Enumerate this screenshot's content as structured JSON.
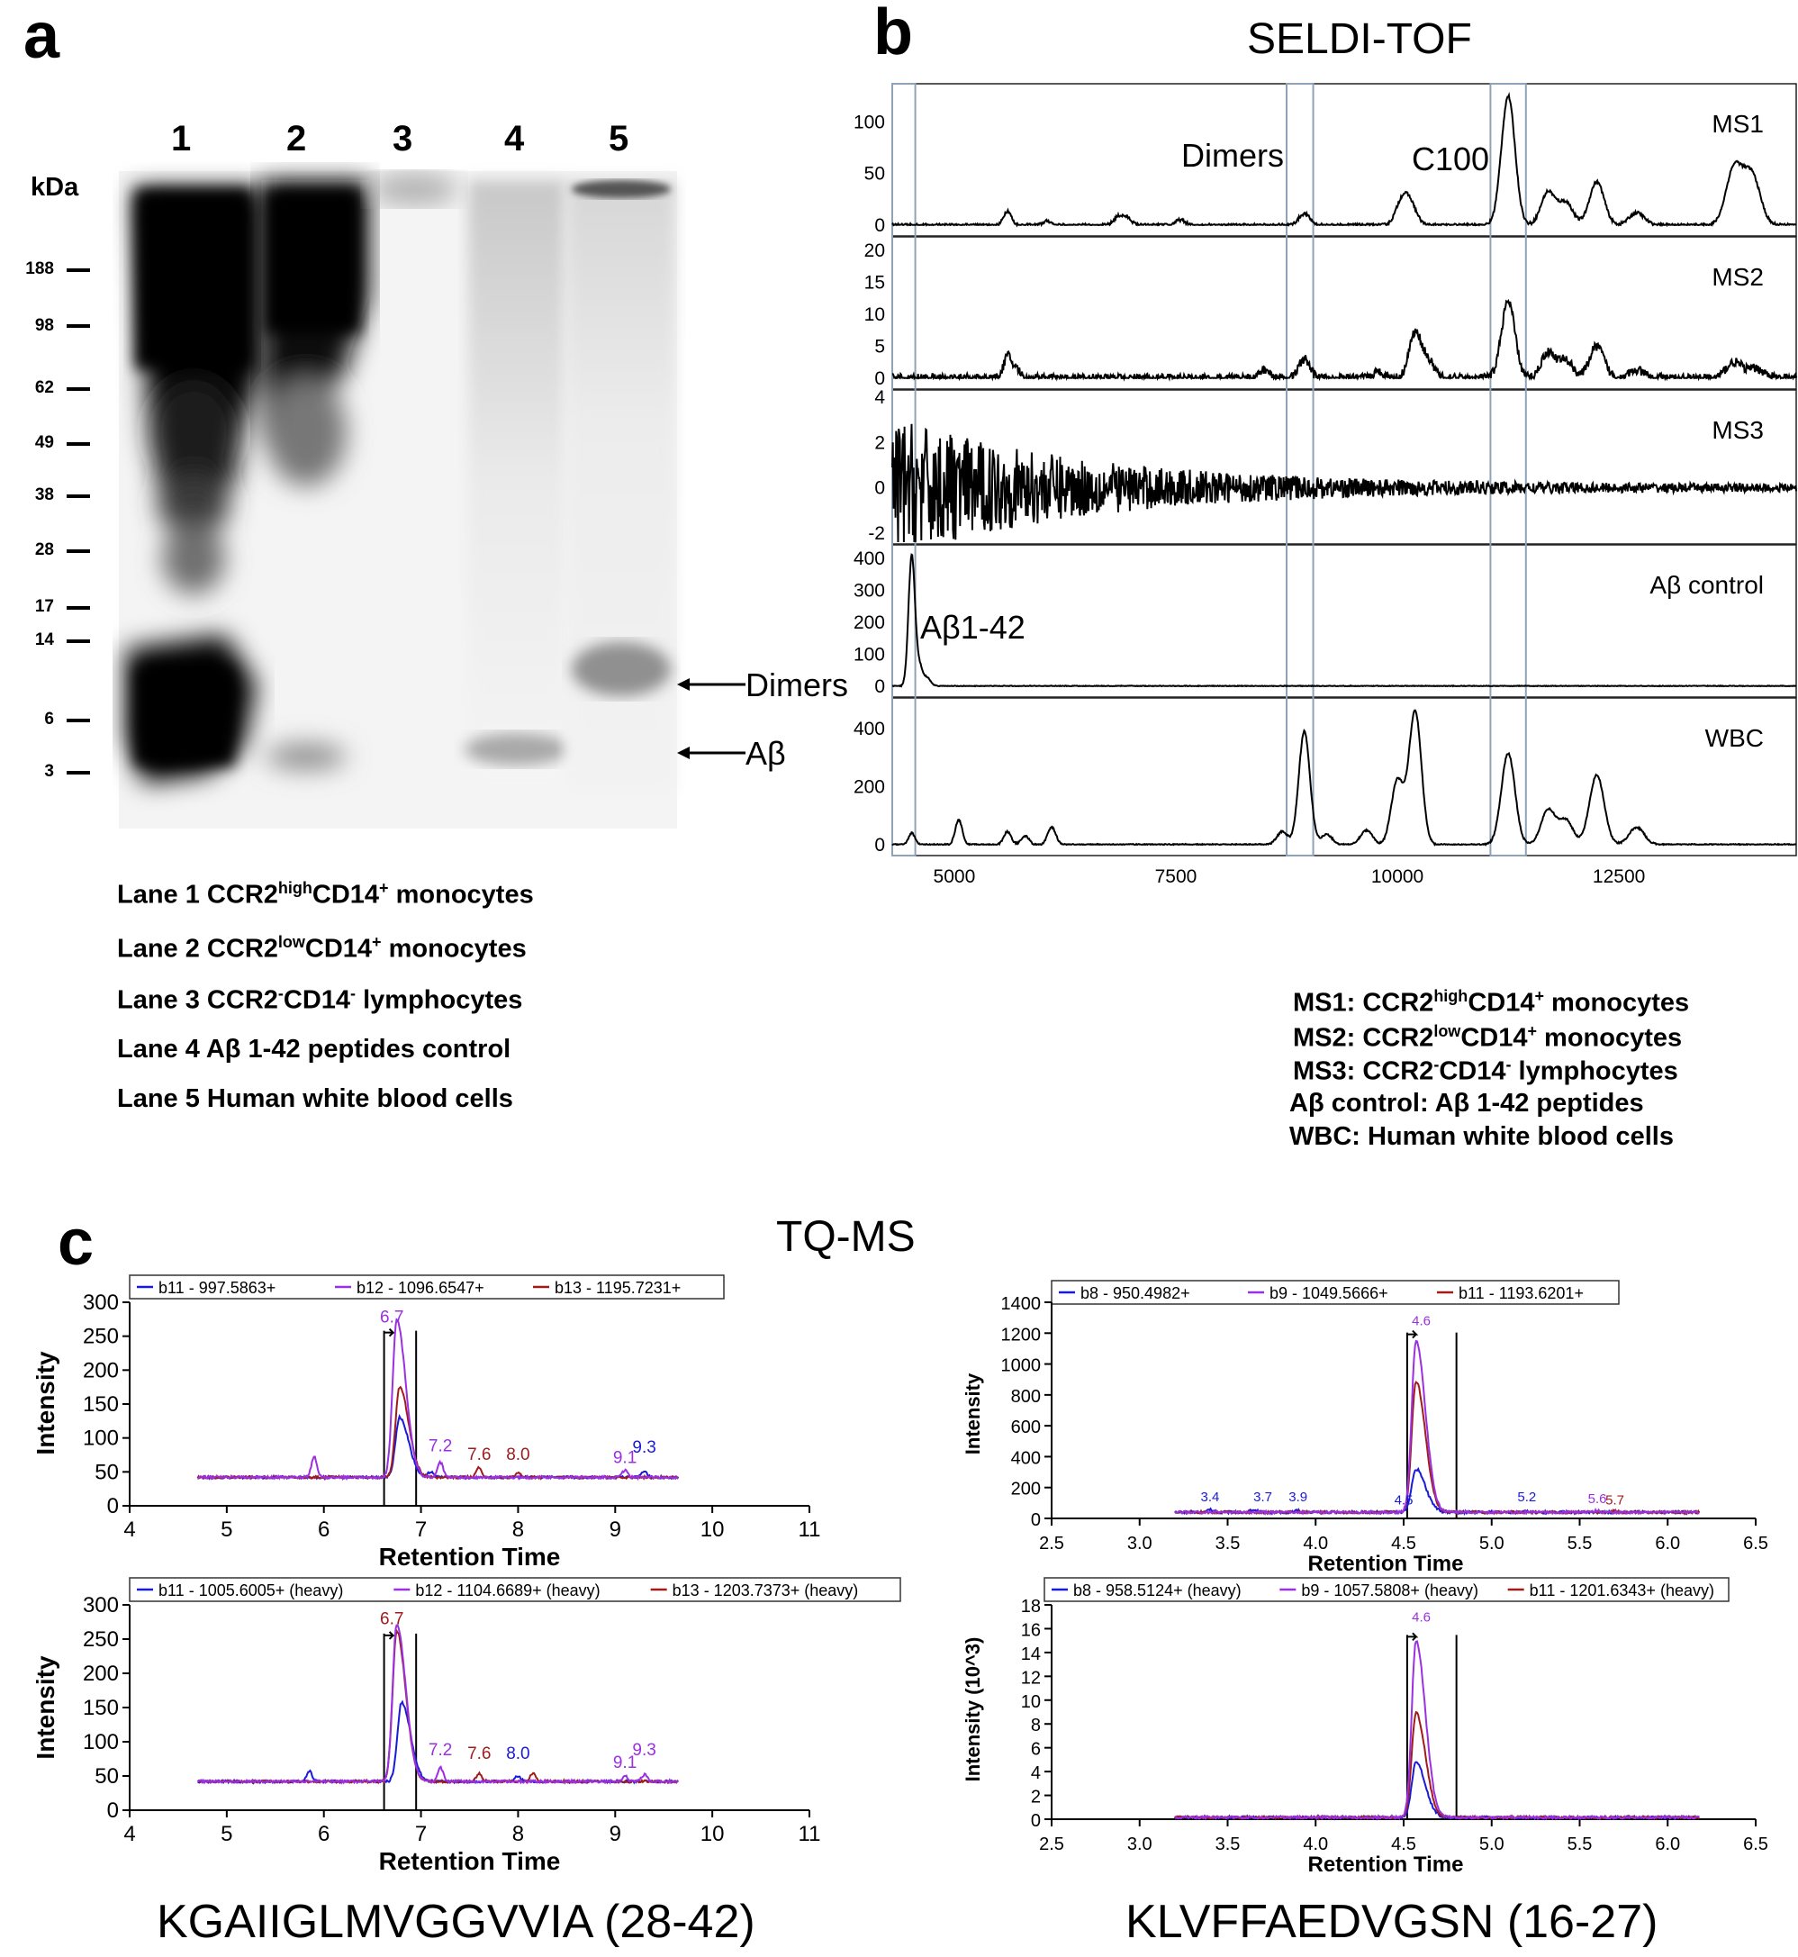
{
  "panel_a": {
    "letter": "a",
    "lanes": [
      "1",
      "2",
      "3",
      "4",
      "5"
    ],
    "unit_label": "kDa",
    "markers": [
      "188",
      "98",
      "62",
      "49",
      "38",
      "28",
      "17",
      "14",
      "6",
      "3"
    ],
    "arrows": [
      "Dimers",
      "Aβ"
    ],
    "legend": [
      {
        "pre": "Lane 1 CCR2",
        "sup1": "high",
        "mid": "CD14",
        "sup2": "+",
        "post": " monocytes"
      },
      {
        "pre": "Lane 2 CCR2",
        "sup1": "low",
        "mid": "CD14",
        "sup2": "+",
        "post": " monocytes"
      },
      {
        "pre": "Lane 3 CCR2",
        "sup1": "-",
        "mid": "CD14",
        "sup2": "-",
        "post": " lymphocytes"
      },
      {
        "pre": "Lane 4 Aβ 1-42 peptides control",
        "sup1": "",
        "mid": "",
        "sup2": "",
        "post": ""
      },
      {
        "pre": "Lane 5 Human white blood cells",
        "sup1": "",
        "mid": "",
        "sup2": "",
        "post": ""
      }
    ]
  },
  "panel_b": {
    "letter": "b",
    "title": "SELDI-TOF",
    "annotations": {
      "dimers": "Dimers",
      "c100": "C100",
      "abeta": "Aβ1-42"
    },
    "legend": [
      {
        "pre": "MS1: CCR2",
        "sup1": "high",
        "mid": "CD14",
        "sup2": "+",
        "post": " monocytes"
      },
      {
        "pre": "MS2: CCR2",
        "sup1": "low",
        "mid": "CD14",
        "sup2": "+",
        "post": " monocytes"
      },
      {
        "pre": "MS3: CCR2",
        "sup1": "-",
        "mid": "CD14",
        "sup2": "-",
        "post": " lymphocytes"
      },
      {
        "pre": "Aβ control: Aβ 1-42 peptides",
        "sup1": "",
        "mid": "",
        "sup2": "",
        "post": ""
      },
      {
        "pre": "WBC: Human white blood cells",
        "sup1": "",
        "mid": "",
        "sup2": "",
        "post": ""
      }
    ]
  },
  "panel_c": {
    "letter": "c",
    "title": "TQ-MS",
    "sequences": [
      "KGAIIGLMVGGVVIA (28-42)",
      "KLVFFAEDVGSN (16-27)"
    ]
  },
  "chart_data": [
    {
      "id": "seldi",
      "type": "line",
      "xlim": [
        4300,
        14500
      ],
      "xticks": [
        5000,
        7500,
        10000,
        12500
      ],
      "highlight_windows": [
        [
          4300,
          4560
        ],
        [
          8750,
          9050
        ],
        [
          11050,
          11450
        ]
      ],
      "series": [
        {
          "name": "MS1",
          "ylim": [
            0,
            130
          ],
          "yticks": [
            0,
            50,
            100
          ],
          "peaks": [
            [
              5600,
              14
            ],
            [
              6050,
              4
            ],
            [
              6850,
              8
            ],
            [
              6950,
              7
            ],
            [
              7550,
              5
            ],
            [
              8950,
              11
            ],
            [
              10050,
              22
            ],
            [
              10150,
              18
            ],
            [
              11250,
              125
            ],
            [
              11700,
              32
            ],
            [
              11900,
              22
            ],
            [
              12250,
              42
            ],
            [
              12700,
              12
            ],
            [
              13800,
              55
            ],
            [
              14000,
              48
            ]
          ],
          "noise": 1.5
        },
        {
          "name": "MS2",
          "ylim": [
            0,
            21
          ],
          "yticks": [
            0,
            5,
            10,
            15,
            20
          ],
          "peaks": [
            [
              5600,
              3.5
            ],
            [
              5700,
              1.5
            ],
            [
              8500,
              1.3
            ],
            [
              8950,
              3.0
            ],
            [
              9800,
              1.0
            ],
            [
              10200,
              7.0
            ],
            [
              10350,
              2.5
            ],
            [
              11250,
              12
            ],
            [
              11700,
              4.0
            ],
            [
              11900,
              2.8
            ],
            [
              12250,
              5.0
            ],
            [
              12700,
              1.2
            ],
            [
              13800,
              2.5
            ],
            [
              14050,
              1.5
            ]
          ],
          "noise": 0.7
        },
        {
          "name": "MS3",
          "ylim": [
            -2,
            4
          ],
          "yticks": [
            4,
            2,
            0,
            -2
          ],
          "peaks": [],
          "noise": 3.0,
          "decay": true
        },
        {
          "name": "Aβ control",
          "ylim": [
            0,
            420
          ],
          "yticks": [
            0,
            100,
            200,
            300,
            400
          ],
          "peaks": [
            [
              4520,
              410
            ],
            [
              4610,
              60
            ],
            [
              4700,
              25
            ]
          ],
          "noise": 2
        },
        {
          "name": "WBC",
          "ylim": [
            0,
            480
          ],
          "yticks": [
            0,
            200,
            400
          ],
          "peaks": [
            [
              4520,
              40
            ],
            [
              5050,
              85
            ],
            [
              5600,
              45
            ],
            [
              5800,
              30
            ],
            [
              6100,
              60
            ],
            [
              8700,
              45
            ],
            [
              8950,
              390
            ],
            [
              9200,
              35
            ],
            [
              9650,
              50
            ],
            [
              10000,
              220
            ],
            [
              10200,
              460
            ],
            [
              11250,
              315
            ],
            [
              11700,
              120
            ],
            [
              11900,
              85
            ],
            [
              12250,
              240
            ],
            [
              12700,
              60
            ]
          ],
          "noise": 3
        }
      ]
    },
    {
      "id": "tq1",
      "type": "line",
      "xlabel": "Retention Time",
      "ylabel": "Intensity",
      "xlim": [
        4,
        11
      ],
      "ylim": [
        0,
        300
      ],
      "xticks": [
        4,
        5,
        6,
        7,
        8,
        9,
        10,
        11
      ],
      "yticks": [
        0,
        50,
        100,
        150,
        200,
        250,
        300
      ],
      "legend": [
        "b11 - 997.5863+",
        "b12 - 1096.6547+",
        "b13 - 1195.7231+"
      ],
      "colors": [
        "#1a1adb",
        "#9b30e0",
        "#a01c1c"
      ],
      "xrange": [
        4.7,
        9.65
      ],
      "baseline": 42,
      "series_peaks": [
        [
          [
            6.78,
            88
          ],
          [
            7.1,
            8
          ],
          [
            9.3,
            8
          ]
        ],
        [
          [
            6.75,
            232
          ],
          [
            5.9,
            30
          ],
          [
            7.2,
            22
          ],
          [
            9.1,
            10
          ]
        ],
        [
          [
            6.78,
            133
          ],
          [
            7.6,
            14
          ],
          [
            8.0,
            6
          ]
        ]
      ],
      "vlines": [
        6.62,
        6.95
      ],
      "labels": [
        {
          "x": 6.7,
          "text": "6.7",
          "y": 270,
          "c": 1
        },
        {
          "x": 7.2,
          "text": "7.2",
          "y": 80,
          "c": 1
        },
        {
          "x": 7.6,
          "text": "7.6",
          "y": 68,
          "c": 2
        },
        {
          "x": 8.0,
          "text": "8.0",
          "y": 68,
          "c": 2
        },
        {
          "x": 9.1,
          "text": "9.1",
          "y": 63,
          "c": 1
        },
        {
          "x": 9.3,
          "text": "9.3",
          "y": 78,
          "c": 0
        }
      ]
    },
    {
      "id": "tq2",
      "type": "line",
      "xlabel": "Retention Time",
      "ylabel": "Intensity",
      "xlim": [
        4,
        11
      ],
      "ylim": [
        0,
        300
      ],
      "xticks": [
        4,
        5,
        6,
        7,
        8,
        9,
        10,
        11
      ],
      "yticks": [
        0,
        50,
        100,
        150,
        200,
        250,
        300
      ],
      "legend": [
        "b11 - 1005.6005+ (heavy)",
        "b12 - 1104.6689+ (heavy)",
        "b13 - 1203.7373+ (heavy)"
      ],
      "colors": [
        "#1a1adb",
        "#9b30e0",
        "#a01c1c"
      ],
      "xrange": [
        4.7,
        9.65
      ],
      "baseline": 42,
      "series_peaks": [
        [
          [
            6.8,
            115
          ],
          [
            5.85,
            15
          ],
          [
            8.0,
            8
          ]
        ],
        [
          [
            6.75,
            230
          ],
          [
            7.2,
            20
          ],
          [
            9.1,
            8
          ],
          [
            9.3,
            10
          ]
        ],
        [
          [
            6.75,
            220
          ],
          [
            7.6,
            12
          ],
          [
            8.15,
            12
          ]
        ]
      ],
      "vlines": [
        6.62,
        6.95
      ],
      "labels": [
        {
          "x": 6.7,
          "text": "6.7",
          "y": 272,
          "c": 2
        },
        {
          "x": 7.2,
          "text": "7.2",
          "y": 80,
          "c": 1
        },
        {
          "x": 7.6,
          "text": "7.6",
          "y": 75,
          "c": 2
        },
        {
          "x": 8.0,
          "text": "8.0",
          "y": 75,
          "c": 0
        },
        {
          "x": 9.1,
          "text": "9.1",
          "y": 62,
          "c": 1
        },
        {
          "x": 9.3,
          "text": "9.3",
          "y": 80,
          "c": 1
        }
      ]
    },
    {
      "id": "tq3",
      "type": "line",
      "xlabel": "Retention Time",
      "ylabel": "Intensity",
      "xlim": [
        2.5,
        6.5
      ],
      "ylim": [
        0,
        1400
      ],
      "xticks": [
        2.5,
        3.0,
        3.5,
        4.0,
        4.5,
        5.0,
        5.5,
        6.0,
        6.5
      ],
      "yticks": [
        0,
        200,
        400,
        600,
        800,
        1000,
        1200,
        1400
      ],
      "legend": [
        "b8 - 950.4982+",
        "b9 - 1049.5666+",
        "b11 - 1193.6201+"
      ],
      "colors": [
        "#1a1adb",
        "#9b30e0",
        "#a01c1c"
      ],
      "xrange": [
        3.2,
        6.18
      ],
      "baseline": 40,
      "series_peaks": [
        [
          [
            4.57,
            280
          ],
          [
            3.4,
            15
          ],
          [
            3.65,
            20
          ],
          [
            3.9,
            12
          ],
          [
            5.2,
            10
          ]
        ],
        [
          [
            4.57,
            1110
          ],
          [
            5.6,
            10
          ]
        ],
        [
          [
            4.57,
            850
          ],
          [
            5.7,
            8
          ]
        ]
      ],
      "vlines": [
        4.52,
        4.8
      ],
      "labels": [
        {
          "x": 3.4,
          "text": "3.4",
          "y": 110,
          "c": 0
        },
        {
          "x": 3.7,
          "text": "3.7",
          "y": 110,
          "c": 0
        },
        {
          "x": 3.9,
          "text": "3.9",
          "y": 110,
          "c": 0
        },
        {
          "x": 4.5,
          "text": "4.5",
          "y": 90,
          "c": 0
        },
        {
          "x": 4.6,
          "text": "4.6",
          "y": 1250,
          "c": 1
        },
        {
          "x": 5.2,
          "text": "5.2",
          "y": 110,
          "c": 0
        },
        {
          "x": 5.6,
          "text": "5.6",
          "y": 100,
          "c": 1
        },
        {
          "x": 5.7,
          "text": "5.7",
          "y": 90,
          "c": 2
        }
      ]
    },
    {
      "id": "tq4",
      "type": "line",
      "xlabel": "Retention Time",
      "ylabel": "Intensity (10^3)",
      "xlim": [
        2.5,
        6.5
      ],
      "ylim": [
        0,
        18
      ],
      "xticks": [
        2.5,
        3.0,
        3.5,
        4.0,
        4.5,
        5.0,
        5.5,
        6.0,
        6.5
      ],
      "yticks": [
        0,
        2,
        4,
        6,
        8,
        10,
        12,
        14,
        16,
        18
      ],
      "legend": [
        "b8 - 958.5124+ (heavy)",
        "b9 - 1057.5808+ (heavy)",
        "b11 - 1201.6343+ (heavy)"
      ],
      "colors": [
        "#1a1adb",
        "#9b30e0",
        "#a01c1c"
      ],
      "xrange": [
        3.2,
        6.18
      ],
      "baseline": 0.15,
      "series_peaks": [
        [
          [
            4.57,
            4.6
          ]
        ],
        [
          [
            4.57,
            14.8
          ]
        ],
        [
          [
            4.57,
            8.8
          ]
        ]
      ],
      "vlines": [
        4.52,
        4.8
      ],
      "labels": [
        {
          "x": 4.6,
          "text": "4.6",
          "y": 16.6,
          "c": 1
        }
      ]
    }
  ]
}
